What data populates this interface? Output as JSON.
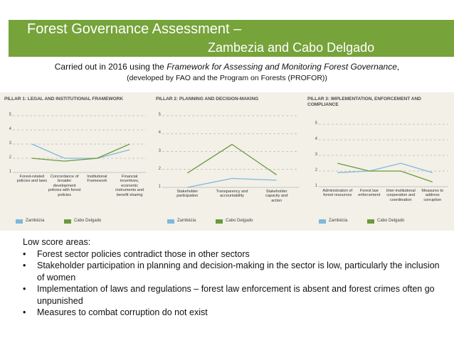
{
  "header": {
    "title_line1": "Forest Governance Assessment –",
    "title_line2": "Zambezia and Cabo Delgado"
  },
  "intro": {
    "before": "Carried out in 2016 using the ",
    "italic": "Framework for Assessing and Monitoring Forest Governance",
    "after": ",",
    "line2": "(developed by FAO and the Program on Forests (PROFOR))"
  },
  "chart_data": [
    {
      "type": "line",
      "title": "PILLAR 1: LEGAL AND INSTITUTIONAL FRAMEWORK",
      "categories": [
        "Forest-related policies and laws",
        "Concordance of broader development policies with forest policies",
        "Institutional Framework",
        "Financial incentives, economic instruments and benefit sharing"
      ],
      "series": [
        {
          "name": "Zambézia",
          "color": "#7fb8d8",
          "values": [
            3,
            2,
            2,
            2.6
          ]
        },
        {
          "name": "Cabo Delgado",
          "color": "#6a9a3a",
          "values": [
            2,
            1.8,
            2,
            3
          ]
        }
      ],
      "ylim": [
        1,
        5
      ],
      "yticks": [
        1,
        2,
        3,
        4,
        5
      ],
      "grid": true
    },
    {
      "type": "line",
      "title": "PILLAR 2: PLANNING AND DECISION-MAKING",
      "categories": [
        "Stakeholder participation",
        "Transparency and accountability",
        "Stakeholder capacity and action"
      ],
      "series": [
        {
          "name": "Zambézia",
          "color": "#7fb8d8",
          "values": [
            1,
            1.5,
            1.4
          ]
        },
        {
          "name": "Cabo Delgado",
          "color": "#6a9a3a",
          "values": [
            1.8,
            3.4,
            1.7
          ]
        }
      ],
      "ylim": [
        1,
        5
      ],
      "yticks": [
        1,
        2,
        3,
        4,
        5
      ],
      "grid": true
    },
    {
      "type": "line",
      "title": "PILLAR 3: IMPLEMENTATION, ENFORCEMENT AND COMPLIANCE",
      "categories": [
        "Administration of forest resources",
        "Forest law enforcement",
        "Inter-institutional cooperation and coordination",
        "Measures to address corruption"
      ],
      "series": [
        {
          "name": "Zambézia",
          "color": "#7fb8d8",
          "values": [
            1.9,
            2,
            2.5,
            1.9
          ]
        },
        {
          "name": "Cabo Delgado",
          "color": "#6a9a3a",
          "values": [
            2.5,
            2,
            2,
            1.3
          ]
        }
      ],
      "ylim": [
        1,
        5
      ],
      "yticks": [
        1,
        2,
        3,
        4,
        5
      ],
      "grid": true
    }
  ],
  "notes": {
    "heading": "Low score areas:",
    "bullets": [
      "Forest sector policies contradict those in other sectors",
      "Stakeholder participation in planning and decision-making in the sector is low, particularly the inclusion of women",
      "Implementation of laws and regulations – forest law enforcement is absent and forest crimes often go unpunished",
      "Measures to combat corruption do not exist"
    ]
  }
}
